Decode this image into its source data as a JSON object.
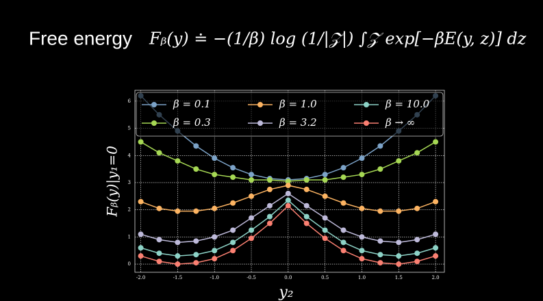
{
  "chart_data": {
    "type": "line",
    "title": "Free energy",
    "subtitle": "Fᵦ(y) ≐ −(1/β) log (1/|𝒵|) ∫𝒵 exp[−βE(y, z)] dz",
    "x_label": "y₂",
    "y_label": "Fᵦ(y)|y₁=0",
    "x": [
      -2,
      -1.75,
      -1.5,
      -1.25,
      -1,
      -0.75,
      -0.5,
      -0.25,
      0,
      0.25,
      0.5,
      0.75,
      1,
      1.25,
      1.5,
      1.75,
      2
    ],
    "series": [
      {
        "name": "β = 0.1",
        "color": "#7ca3c8",
        "values": [
          6.2,
          5.5,
          4.9,
          4.35,
          3.9,
          3.55,
          3.3,
          3.15,
          3.1,
          3.15,
          3.3,
          3.55,
          3.9,
          4.35,
          4.9,
          5.5,
          6.2
        ]
      },
      {
        "name": "β = 0.3",
        "color": "#a6d854",
        "values": [
          4.5,
          4.1,
          3.8,
          3.5,
          3.3,
          3.2,
          3.1,
          3.1,
          3.05,
          3.1,
          3.1,
          3.2,
          3.3,
          3.5,
          3.8,
          4.1,
          4.5
        ]
      },
      {
        "name": "β = 1.0",
        "color": "#fdb462",
        "values": [
          2.3,
          2.05,
          1.95,
          1.95,
          2.05,
          2.25,
          2.5,
          2.75,
          2.9,
          2.75,
          2.5,
          2.25,
          2.05,
          1.95,
          1.95,
          2.05,
          2.3
        ]
      },
      {
        "name": "β = 3.2",
        "color": "#bebada",
        "values": [
          1.1,
          0.9,
          0.8,
          0.85,
          1.0,
          1.25,
          1.7,
          2.15,
          2.6,
          2.15,
          1.7,
          1.25,
          1.0,
          0.85,
          0.8,
          0.9,
          1.1
        ]
      },
      {
        "name": "β = 10.0",
        "color": "#8dd3c7",
        "values": [
          0.6,
          0.4,
          0.3,
          0.35,
          0.5,
          0.8,
          1.25,
          1.75,
          2.35,
          1.75,
          1.25,
          0.8,
          0.5,
          0.35,
          0.3,
          0.4,
          0.6
        ]
      },
      {
        "name": "β → ∞",
        "color": "#fb8072",
        "values": [
          0.3,
          0.1,
          0.0,
          0.05,
          0.2,
          0.5,
          0.95,
          1.5,
          2.15,
          1.5,
          0.95,
          0.5,
          0.2,
          0.05,
          0.0,
          0.1,
          0.3
        ]
      }
    ],
    "xlim": [
      -2.08,
      2.12
    ],
    "ylim": [
      -0.3,
      6.4
    ],
    "xticks": [
      {
        "value": -2,
        "label": "-2.0"
      },
      {
        "value": -1.5,
        "label": "-1.5"
      },
      {
        "value": -1,
        "label": "-1.0"
      },
      {
        "value": -0.5,
        "label": "-0.5"
      },
      {
        "value": 0,
        "label": "0.0"
      },
      {
        "value": 0.5,
        "label": "0.5"
      },
      {
        "value": 1,
        "label": "1.0"
      },
      {
        "value": 1.5,
        "label": "1.5"
      },
      {
        "value": 2,
        "label": "2.0"
      }
    ],
    "yticks": [
      0,
      1,
      2,
      3,
      4,
      5,
      6
    ],
    "grid": true,
    "legend": "upper"
  }
}
